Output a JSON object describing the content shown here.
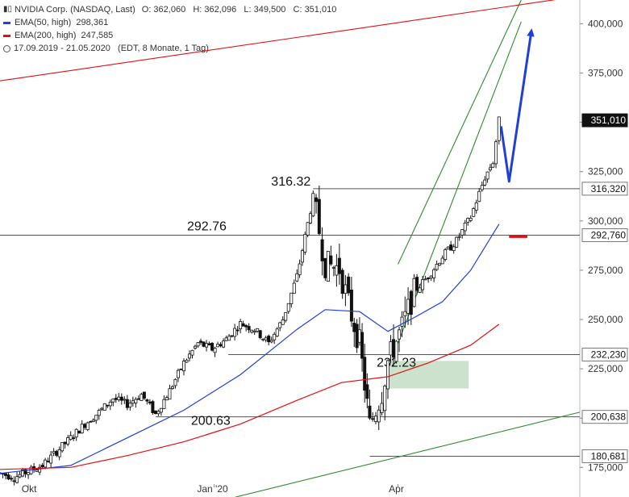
{
  "legend": {
    "title": "NVIDIA Corp. (NASDAQ, Last)",
    "ohlc": "O: 362,060   H: 362,096   L: 349,500   C: 351,010",
    "ema50": "EMA(50, high)  298,361",
    "ema200": "EMA(200, high)  247,585",
    "range": "17.09.2019 - 21.05.2020   (EDT, 8 Monate, 1 Tag)",
    "ema50_color": "#1f3fd8",
    "ema200_color": "#e01010"
  },
  "chart_data": {
    "type": "candlestick",
    "title": "NVIDIA Corp. (NASDAQ, Last)",
    "y_ticks": [
      {
        "value": 175,
        "label": "175,000"
      },
      {
        "value": 200,
        "label": ""
      },
      {
        "value": 225,
        "label": "225,000"
      },
      {
        "value": 250,
        "label": "250,000"
      },
      {
        "value": 275,
        "label": "275,000"
      },
      {
        "value": 300,
        "label": "300,000"
      },
      {
        "value": 325,
        "label": "325,000"
      },
      {
        "value": 350,
        "label": ""
      },
      {
        "value": 375,
        "label": "375,000"
      },
      {
        "value": 400,
        "label": "400,000"
      }
    ],
    "x_ticks": [
      {
        "date": "2019-10-01",
        "label": "Okt"
      },
      {
        "date": "2020-01-01",
        "label": "Jan '20"
      },
      {
        "date": "2020-04-01",
        "label": "Apr"
      }
    ],
    "ylim": [
      160,
      412
    ],
    "xlim": [
      "2019-09-17",
      "2020-06-30"
    ],
    "last_price": {
      "value": 351.01,
      "label": "351,010"
    },
    "levels": [
      {
        "value": 316.32,
        "label": "316,320",
        "annotation": "316.32",
        "from": "2020-02-19"
      },
      {
        "value": 292.76,
        "label": "292,760",
        "annotation": "292.76",
        "from": "2019-09-17"
      },
      {
        "value": 232.23,
        "label": "232,230",
        "annotation": "232.23",
        "from": "2020-01-08"
      },
      {
        "value": 200.63,
        "label": "200,638",
        "annotation": "200.63",
        "from": "2019-12-03"
      },
      {
        "value": 180.68,
        "label": "180,681",
        "annotation": "",
        "from": "2020-03-18"
      }
    ],
    "close_series": [
      {
        "date": "2019-09-17",
        "close": 172
      },
      {
        "date": "2019-09-24",
        "close": 170
      },
      {
        "date": "2019-10-01",
        "close": 173
      },
      {
        "date": "2019-10-08",
        "close": 176
      },
      {
        "date": "2019-10-15",
        "close": 183
      },
      {
        "date": "2019-10-22",
        "close": 190
      },
      {
        "date": "2019-10-29",
        "close": 197
      },
      {
        "date": "2019-11-05",
        "close": 203
      },
      {
        "date": "2019-11-12",
        "close": 210
      },
      {
        "date": "2019-11-19",
        "close": 207
      },
      {
        "date": "2019-11-26",
        "close": 212
      },
      {
        "date": "2019-12-03",
        "close": 202
      },
      {
        "date": "2019-12-10",
        "close": 214
      },
      {
        "date": "2019-12-17",
        "close": 228
      },
      {
        "date": "2019-12-24",
        "close": 238
      },
      {
        "date": "2019-12-31",
        "close": 235
      },
      {
        "date": "2020-01-07",
        "close": 240
      },
      {
        "date": "2020-01-14",
        "close": 248
      },
      {
        "date": "2020-01-21",
        "close": 245
      },
      {
        "date": "2020-01-28",
        "close": 238
      },
      {
        "date": "2020-02-04",
        "close": 250
      },
      {
        "date": "2020-02-11",
        "close": 272
      },
      {
        "date": "2020-02-19",
        "close": 312
      },
      {
        "date": "2020-02-25",
        "close": 278
      },
      {
        "date": "2020-03-03",
        "close": 276
      },
      {
        "date": "2020-03-09",
        "close": 252
      },
      {
        "date": "2020-03-13",
        "close": 238
      },
      {
        "date": "2020-03-18",
        "close": 196
      },
      {
        "date": "2020-03-24",
        "close": 213
      },
      {
        "date": "2020-03-27",
        "close": 229
      },
      {
        "date": "2020-04-03",
        "close": 246
      },
      {
        "date": "2020-04-09",
        "close": 264
      },
      {
        "date": "2020-04-16",
        "close": 272
      },
      {
        "date": "2020-04-23",
        "close": 282
      },
      {
        "date": "2020-04-30",
        "close": 290
      },
      {
        "date": "2020-05-07",
        "close": 302
      },
      {
        "date": "2020-05-14",
        "close": 322
      },
      {
        "date": "2020-05-18",
        "close": 330
      },
      {
        "date": "2020-05-21",
        "close": 351
      }
    ],
    "series": [
      {
        "name": "EMA(50, high)",
        "color": "#1f3fd8",
        "points": [
          {
            "date": "2019-09-17",
            "value": 172
          },
          {
            "date": "2019-10-22",
            "value": 176
          },
          {
            "date": "2019-11-19",
            "value": 190
          },
          {
            "date": "2019-12-17",
            "value": 204
          },
          {
            "date": "2020-01-14",
            "value": 222
          },
          {
            "date": "2020-02-11",
            "value": 245
          },
          {
            "date": "2020-02-25",
            "value": 255
          },
          {
            "date": "2020-03-13",
            "value": 254
          },
          {
            "date": "2020-03-27",
            "value": 244
          },
          {
            "date": "2020-04-09",
            "value": 251
          },
          {
            "date": "2020-04-23",
            "value": 259
          },
          {
            "date": "2020-05-07",
            "value": 275
          },
          {
            "date": "2020-05-21",
            "value": 298.36
          }
        ]
      },
      {
        "name": "EMA(200, high)",
        "color": "#e01010",
        "points": [
          {
            "date": "2019-09-17",
            "value": 174
          },
          {
            "date": "2019-10-22",
            "value": 175
          },
          {
            "date": "2019-11-19",
            "value": 181
          },
          {
            "date": "2019-12-17",
            "value": 188
          },
          {
            "date": "2020-01-14",
            "value": 197
          },
          {
            "date": "2020-02-11",
            "value": 209
          },
          {
            "date": "2020-03-04",
            "value": 218
          },
          {
            "date": "2020-03-27",
            "value": 221
          },
          {
            "date": "2020-04-16",
            "value": 228
          },
          {
            "date": "2020-05-07",
            "value": 237
          },
          {
            "date": "2020-05-21",
            "value": 247.59
          }
        ]
      }
    ],
    "channel_lines": [
      {
        "color": "#2e8b2e",
        "from": {
          "date": "2020-04-01",
          "value": 278
        },
        "to": {
          "date": "2020-06-01",
          "value": 412
        }
      },
      {
        "color": "#2e8b2e",
        "from": {
          "date": "2020-04-01",
          "value": 238
        },
        "to": {
          "date": "2020-06-01",
          "value": 401
        }
      },
      {
        "color": "#2e8b2e",
        "from": {
          "date": "2019-12-23",
          "value": 155
        },
        "to": {
          "date": "2020-06-30",
          "value": 203
        }
      },
      {
        "color": "#e01010",
        "from": {
          "date": "2019-09-17",
          "value": 371
        },
        "to": {
          "date": "2020-06-30",
          "value": 414
        }
      }
    ],
    "zone": {
      "from_date": "2020-03-27",
      "to_date": "2020-05-06",
      "low": 215,
      "high": 229,
      "color": "#c7dfc7"
    },
    "forecast_arrow": {
      "color": "#1f3fd8",
      "points": [
        {
          "date": "2020-05-22",
          "value": 348
        },
        {
          "date": "2020-05-26",
          "value": 320
        },
        {
          "date": "2020-06-06",
          "value": 396
        }
      ]
    },
    "target_marker": {
      "value": 292,
      "from_date": "2020-05-26",
      "to_date": "2020-06-04",
      "color": "#e01010"
    }
  }
}
